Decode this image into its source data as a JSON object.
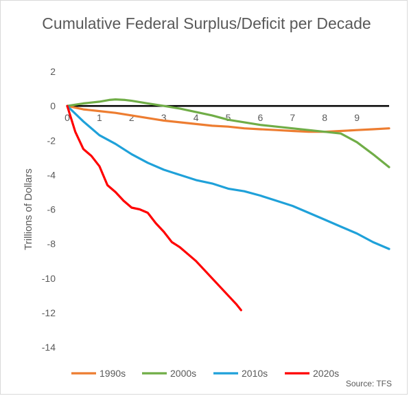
{
  "chart_data": {
    "type": "line",
    "title": "Cumulative Federal Surplus/Deficit per Decade",
    "xlabel": "",
    "ylabel": "Trillions of Dollars",
    "source": "Source: TFS",
    "xlim": [
      0,
      10
    ],
    "ylim": [
      -14,
      2
    ],
    "x_ticks": [
      "0",
      "1",
      "2",
      "3",
      "4",
      "5",
      "6",
      "7",
      "8",
      "9"
    ],
    "y_ticks": [
      "2",
      "0",
      "-2",
      "-4",
      "-6",
      "-8",
      "-10",
      "-12",
      "-14"
    ],
    "grid": false,
    "legend_position": "bottom",
    "series": [
      {
        "name": "1990s",
        "color": "#ED7D31",
        "x": [
          0,
          0.5,
          1,
          1.5,
          2,
          2.5,
          3,
          3.5,
          4,
          4.5,
          5,
          5.5,
          6,
          6.5,
          7,
          7.5,
          8,
          8.5,
          9,
          9.5,
          10
        ],
        "y": [
          0,
          -0.2,
          -0.3,
          -0.4,
          -0.55,
          -0.7,
          -0.85,
          -0.95,
          -1.05,
          -1.15,
          -1.2,
          -1.3,
          -1.35,
          -1.4,
          -1.45,
          -1.5,
          -1.5,
          -1.45,
          -1.4,
          -1.35,
          -1.3
        ]
      },
      {
        "name": "2000s",
        "color": "#70AD47",
        "x": [
          0,
          0.5,
          1,
          1.3,
          1.5,
          1.8,
          2,
          2.5,
          3,
          3.5,
          4,
          4.5,
          5,
          5.5,
          6,
          6.5,
          7,
          7.5,
          8,
          8.5,
          9,
          9.5,
          10
        ],
        "y": [
          0,
          0.15,
          0.25,
          0.35,
          0.38,
          0.35,
          0.3,
          0.15,
          0.0,
          -0.15,
          -0.35,
          -0.55,
          -0.8,
          -0.95,
          -1.1,
          -1.2,
          -1.3,
          -1.4,
          -1.5,
          -1.6,
          -2.1,
          -2.8,
          -3.55
        ]
      },
      {
        "name": "2010s",
        "color": "#1FA1D9",
        "x": [
          0,
          0.5,
          1,
          1.5,
          2,
          2.5,
          3,
          3.5,
          4,
          4.5,
          5,
          5.5,
          6,
          6.5,
          7,
          7.5,
          8,
          8.5,
          9,
          9.5,
          10
        ],
        "y": [
          0,
          -0.9,
          -1.7,
          -2.2,
          -2.8,
          -3.3,
          -3.7,
          -4.0,
          -4.3,
          -4.5,
          -4.8,
          -4.95,
          -5.2,
          -5.5,
          -5.8,
          -6.2,
          -6.6,
          -7.0,
          -7.4,
          -7.9,
          -8.3
        ]
      },
      {
        "name": "2020s",
        "color": "#FF0000",
        "x": [
          0,
          0.25,
          0.5,
          0.75,
          1,
          1.25,
          1.5,
          1.75,
          2,
          2.25,
          2.5,
          2.75,
          3,
          3.25,
          3.5,
          3.75,
          4,
          4.25,
          4.5,
          4.75,
          5,
          5.25,
          5.4
        ],
        "y": [
          0,
          -1.5,
          -2.5,
          -2.9,
          -3.5,
          -4.6,
          -5.0,
          -5.5,
          -5.9,
          -6.0,
          -6.2,
          -6.8,
          -7.3,
          -7.9,
          -8.2,
          -8.6,
          -9.0,
          -9.5,
          -10.0,
          -10.5,
          -11.0,
          -11.5,
          -11.85
        ]
      }
    ]
  }
}
